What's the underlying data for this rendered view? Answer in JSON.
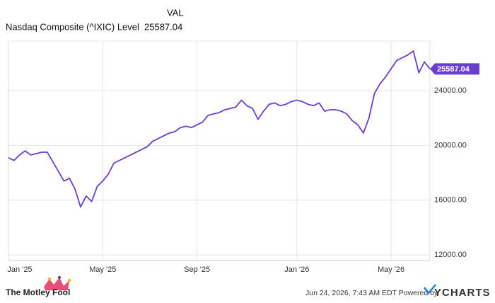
{
  "chart_data": {
    "type": "line",
    "legend_header": "VAL",
    "categories": [
      "Jan '25",
      null,
      null,
      null,
      null,
      null,
      null,
      null,
      null,
      null,
      null,
      null,
      null,
      null,
      null,
      null,
      null,
      "May '25",
      null,
      null,
      null,
      null,
      null,
      null,
      null,
      null,
      null,
      null,
      null,
      null,
      null,
      null,
      null,
      null,
      "Sep '25",
      null,
      null,
      null,
      null,
      null,
      null,
      null,
      null,
      null,
      null,
      null,
      null,
      null,
      null,
      null,
      null,
      null,
      "Jan '26",
      null,
      null,
      null,
      null,
      null,
      null,
      null,
      null,
      null,
      null,
      null,
      null,
      null,
      null,
      null,
      null,
      "May '26",
      null,
      null,
      null,
      null,
      null,
      null,
      null
    ],
    "series": [
      {
        "name": "Nasdaq Composite (^IXIC) Level",
        "color": "#6a3fcf",
        "values": [
          19100,
          18900,
          19300,
          19600,
          19300,
          19400,
          19500,
          19500,
          18800,
          18100,
          17400,
          17600,
          16800,
          15500,
          16300,
          15900,
          17000,
          17400,
          17900,
          18700,
          18900,
          19100,
          19300,
          19500,
          19700,
          19900,
          20300,
          20500,
          20700,
          20900,
          21000,
          21300,
          21400,
          21300,
          21500,
          21700,
          22200,
          22300,
          22400,
          22600,
          22700,
          22800,
          23300,
          22900,
          22700,
          21900,
          22500,
          23000,
          23100,
          22900,
          23000,
          23200,
          23300,
          23200,
          23000,
          22900,
          23100,
          22500,
          22600,
          22600,
          22500,
          22300,
          21800,
          21500,
          20900,
          22000,
          23800,
          24500,
          25000,
          25600,
          26200,
          26400,
          26600,
          26900,
          25300,
          26100,
          25587.04
        ]
      }
    ],
    "ylim": [
      11590,
      27620
    ],
    "yticks": [
      {
        "value": 12000,
        "label": "12000.00"
      },
      {
        "value": 16000,
        "label": "16000.00"
      },
      {
        "value": 20000,
        "label": "20000.00"
      },
      {
        "value": 24000,
        "label": "24000.00"
      }
    ],
    "grid": true,
    "footer_left": "The Motley Fool",
    "timestamp": "Jun 24, 2026, 7:43 AM EDT  Powered by",
    "brand": "YCHARTS"
  }
}
